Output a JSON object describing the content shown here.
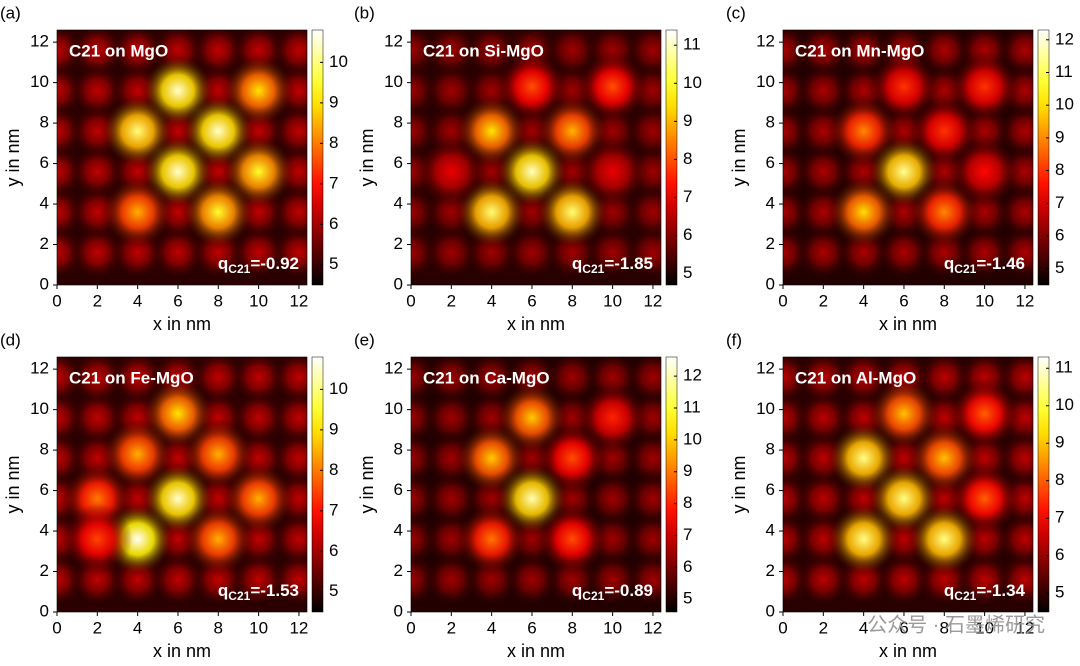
{
  "chart_data": [
    {
      "type": "heatmap",
      "label": "(a)",
      "title": "C21 on MgO",
      "annotation": {
        "symbol": "q",
        "subscript": "C21",
        "text": "=-0.92"
      },
      "xlabel": "x in nm",
      "ylabel": "y in nm",
      "xlim": [
        0,
        12.4
      ],
      "ylim": [
        0,
        12.6
      ],
      "xticks": [
        0,
        2,
        4,
        6,
        8,
        10,
        12
      ],
      "yticks": [
        0,
        2,
        4,
        6,
        8,
        10,
        12
      ],
      "colormap": "hot",
      "clim": [
        4.5,
        10.8
      ],
      "cticks": [
        5,
        6,
        7,
        8,
        9,
        10
      ],
      "background": 6.3,
      "spots": {
        "x": [
          6,
          10,
          4,
          8,
          6,
          10,
          4,
          8
        ],
        "y": [
          9.6,
          9.6,
          7.6,
          7.6,
          5.6,
          5.6,
          3.6,
          3.6
        ],
        "values": [
          10.5,
          9,
          10,
          10.5,
          10.5,
          9.5,
          8.5,
          9.5
        ]
      }
    },
    {
      "type": "heatmap",
      "label": "(b)",
      "title": "C21 on Si-MgO",
      "annotation": {
        "symbol": "q",
        "subscript": "C21",
        "text": "=-1.85"
      },
      "xlabel": "x in nm",
      "ylabel": "y in nm",
      "xlim": [
        0,
        12.4
      ],
      "ylim": [
        0,
        12.6
      ],
      "xticks": [
        0,
        2,
        4,
        6,
        8,
        10,
        12
      ],
      "yticks": [
        0,
        2,
        4,
        6,
        8,
        10,
        12
      ],
      "colormap": "hot",
      "clim": [
        4.7,
        11.4
      ],
      "cticks": [
        5,
        6,
        7,
        8,
        9,
        10,
        11
      ],
      "background": 6.3,
      "spots": {
        "x": [
          6,
          10,
          4,
          8,
          6,
          4,
          8,
          2,
          10
        ],
        "y": [
          9.8,
          9.8,
          7.6,
          7.6,
          5.6,
          3.6,
          3.6,
          5.6,
          5.6
        ],
        "values": [
          8,
          8,
          9.5,
          9,
          11,
          10.5,
          10.5,
          7,
          7
        ]
      }
    },
    {
      "type": "heatmap",
      "label": "(c)",
      "title": "C21 on Mn-MgO",
      "annotation": {
        "symbol": "q",
        "subscript": "C21",
        "text": "=-1.46"
      },
      "xlabel": "x in nm",
      "ylabel": "y in nm",
      "xlim": [
        0,
        12.4
      ],
      "ylim": [
        0,
        12.6
      ],
      "xticks": [
        0,
        2,
        4,
        6,
        8,
        10,
        12
      ],
      "yticks": [
        0,
        2,
        4,
        6,
        8,
        10,
        12
      ],
      "colormap": "hot",
      "clim": [
        4.5,
        12.3
      ],
      "cticks": [
        5,
        6,
        7,
        8,
        9,
        10,
        11,
        12
      ],
      "background": 6.5,
      "spots": {
        "x": [
          6,
          10,
          4,
          8,
          6,
          4,
          8,
          10
        ],
        "y": [
          9.8,
          9.8,
          7.6,
          7.6,
          5.6,
          3.6,
          3.6,
          5.6
        ],
        "values": [
          8,
          8,
          9,
          8,
          11.5,
          10,
          9,
          7.5
        ]
      }
    },
    {
      "type": "heatmap",
      "label": "(d)",
      "title": "C21 on Fe-MgO",
      "annotation": {
        "symbol": "q",
        "subscript": "C21",
        "text": "=-1.53"
      },
      "xlabel": "x in nm",
      "ylabel": "y in nm",
      "xlim": [
        0,
        12.4
      ],
      "ylim": [
        0,
        12.6
      ],
      "xticks": [
        0,
        2,
        4,
        6,
        8,
        10,
        12
      ],
      "yticks": [
        0,
        2,
        4,
        6,
        8,
        10,
        12
      ],
      "colormap": "hot",
      "clim": [
        4.5,
        10.8
      ],
      "cticks": [
        5,
        6,
        7,
        8,
        9,
        10
      ],
      "background": 6.3,
      "spots": {
        "x": [
          6,
          4,
          8,
          2,
          6,
          10,
          4,
          8,
          2
        ],
        "y": [
          9.8,
          7.8,
          7.8,
          5.6,
          5.6,
          5.6,
          3.6,
          3.6,
          3.6
        ],
        "values": [
          9,
          8.5,
          8.5,
          8,
          10.5,
          8.5,
          10.8,
          8.5,
          7.5
        ]
      }
    },
    {
      "type": "heatmap",
      "label": "(e)",
      "title": "C21 on Ca-MgO",
      "annotation": {
        "symbol": "q",
        "subscript": "C21",
        "text": "=-0.89"
      },
      "xlabel": "x in nm",
      "ylabel": "y in nm",
      "xlim": [
        0,
        12.4
      ],
      "ylim": [
        0,
        12.6
      ],
      "xticks": [
        0,
        2,
        4,
        6,
        8,
        10,
        12
      ],
      "yticks": [
        0,
        2,
        4,
        6,
        8,
        10,
        12
      ],
      "colormap": "hot",
      "clim": [
        4.6,
        12.6
      ],
      "cticks": [
        5,
        6,
        7,
        8,
        9,
        10,
        11,
        12
      ],
      "background": 6.5,
      "spots": {
        "x": [
          6,
          10,
          4,
          8,
          6,
          4,
          8
        ],
        "y": [
          9.6,
          9.6,
          7.6,
          7.6,
          5.6,
          3.6,
          3.6
        ],
        "values": [
          10,
          8,
          10,
          8.5,
          12,
          9,
          8.5
        ]
      }
    },
    {
      "type": "heatmap",
      "label": "(f)",
      "title": "C21 on Al-MgO",
      "annotation": {
        "symbol": "q",
        "subscript": "C21",
        "text": "=-1.34"
      },
      "xlabel": "x in nm",
      "ylabel": "y in nm",
      "xlim": [
        0,
        12.4
      ],
      "ylim": [
        0,
        12.6
      ],
      "xticks": [
        0,
        2,
        4,
        6,
        8,
        10,
        12
      ],
      "yticks": [
        0,
        2,
        4,
        6,
        8,
        10,
        12
      ],
      "colormap": "hot",
      "clim": [
        4.5,
        11.3
      ],
      "cticks": [
        5,
        6,
        7,
        8,
        9,
        10,
        11
      ],
      "background": 6.4,
      "spots": {
        "x": [
          6,
          10,
          4,
          8,
          6,
          10,
          4,
          8
        ],
        "y": [
          9.8,
          9.8,
          7.6,
          7.6,
          5.6,
          5.6,
          3.6,
          3.6
        ],
        "values": [
          9,
          8,
          10.5,
          9,
          10.5,
          8,
          10.5,
          10.5
        ]
      }
    }
  ],
  "watermark": "公众号 · 石墨烯研究"
}
